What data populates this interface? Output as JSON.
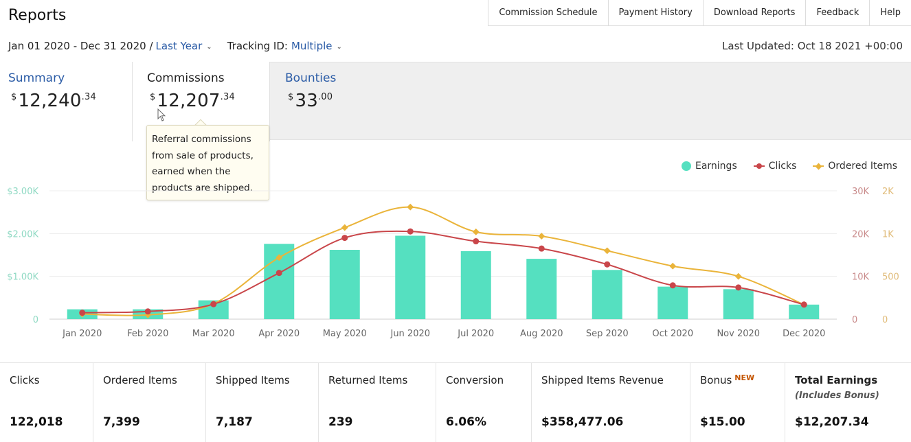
{
  "page": {
    "title": "Reports"
  },
  "nav": [
    {
      "label": "Commission Schedule"
    },
    {
      "label": "Payment History"
    },
    {
      "label": "Download Reports"
    },
    {
      "label": "Feedback"
    },
    {
      "label": "Help"
    }
  ],
  "filters": {
    "date_range": "Jan 01 2020 - Dec 31 2020 /",
    "period": "Last Year",
    "tracking_label": "Tracking ID:",
    "tracking_value": "Multiple"
  },
  "last_updated": "Last Updated: Oct 18 2021 +00:00",
  "tabs": {
    "summary": {
      "label": "Summary",
      "currency": "$",
      "whole": "12,240",
      "cents": ".34"
    },
    "commissions": {
      "label": "Commissions",
      "currency": "$",
      "whole": "12,207",
      "cents": ".34"
    },
    "bounties": {
      "label": "Bounties",
      "currency": "$",
      "whole": "33",
      "cents": ".00"
    }
  },
  "tooltip": {
    "lines": [
      "Referral commissions",
      "from sale of products,",
      "earned when the",
      "products are shipped."
    ]
  },
  "legend": {
    "earnings": "Earnings",
    "clicks": "Clicks",
    "ordered_items": "Ordered Items"
  },
  "colors": {
    "earnings": "#55e0c0",
    "clicks": "#c9464a",
    "ordered_items": "#eab43a",
    "link": "#2a5ba6"
  },
  "chart_data": {
    "type": "bar+line",
    "categories": [
      "Jan 2020",
      "Feb 2020",
      "Mar 2020",
      "Apr 2020",
      "May 2020",
      "Jun 2020",
      "Jul 2020",
      "Aug 2020",
      "Sep 2020",
      "Oct 2020",
      "Nov 2020",
      "Dec 2020"
    ],
    "y_left_ticks": [
      "0",
      "$1.00K",
      "$2.00K",
      "$3.00K"
    ],
    "y_left_range": [
      0,
      3000
    ],
    "y_right1_ticks": [
      "0",
      "10K",
      "20K",
      "30K"
    ],
    "y_right1_range": [
      0,
      30000
    ],
    "y_right2_ticks": [
      "0",
      "500",
      "1K",
      "2K"
    ],
    "y_right2_range": [
      0,
      1500
    ],
    "series": [
      {
        "name": "Earnings",
        "type": "bar",
        "axis": "left",
        "values": [
          230,
          230,
          440,
          1760,
          1620,
          1950,
          1590,
          1410,
          1150,
          760,
          700,
          340
        ]
      },
      {
        "name": "Clicks",
        "type": "line",
        "axis": "right1",
        "values": [
          1500,
          1800,
          3500,
          10800,
          19000,
          20500,
          18200,
          16500,
          12800,
          7900,
          7400,
          3400
        ]
      },
      {
        "name": "Ordered Items",
        "type": "line",
        "axis": "right2",
        "values": [
          60,
          50,
          180,
          720,
          1070,
          1310,
          1020,
          970,
          800,
          620,
          500,
          170
        ]
      }
    ]
  },
  "stats": [
    {
      "label": "Clicks",
      "value": "122,018"
    },
    {
      "label": "Ordered Items",
      "value": "7,399"
    },
    {
      "label": "Shipped Items",
      "value": "7,187"
    },
    {
      "label": "Returned Items",
      "value": "239"
    },
    {
      "label": "Conversion",
      "value": "6.06%"
    },
    {
      "label": "Shipped Items Revenue",
      "value": "$358,477.06"
    },
    {
      "label": "Bonus",
      "badge": "NEW",
      "value": "$15.00"
    },
    {
      "label": "Total Earnings",
      "sub": "(Includes Bonus)",
      "value": "$12,207.34"
    }
  ]
}
